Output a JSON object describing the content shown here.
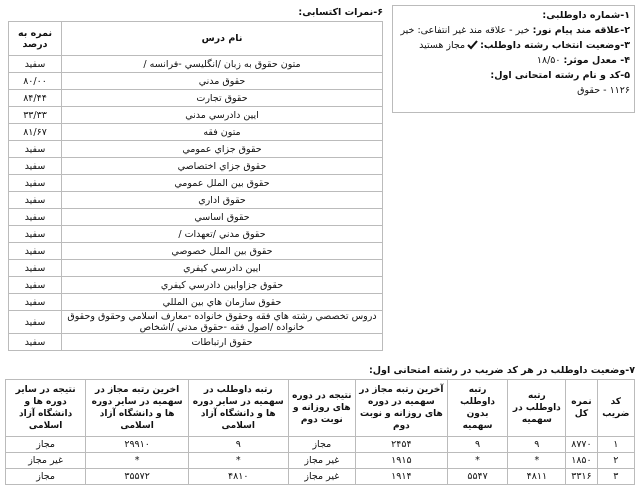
{
  "info": {
    "items": [
      {
        "label": "۱-شماره داوطلبی:"
      },
      {
        "label": "۲-علاقه مند پیام نور:",
        "value": "خیر - علاقه مند غیر انتفاعی: خیر"
      },
      {
        "label": "۳-وضعیت انتخاب رشته داوطلب:",
        "value": "مجاز هستید"
      },
      {
        "label": "۴- معدل موثر:",
        "value": "۱۸/۵۰"
      },
      {
        "label": "۵-کد و نام رشته امتحانی اول:",
        "value": "۱۱۲۶ - حقوق"
      }
    ]
  },
  "grades": {
    "title": "۶-نمرات اکتسابی:",
    "headers": [
      "نام درس",
      "نمره به درصد"
    ],
    "rows": [
      [
        "متون حقوق به زبان /انگليسي -فرانسه /",
        "سفيد"
      ],
      [
        "حقوق مدني",
        "۸۰/۰۰"
      ],
      [
        "حقوق تجارت",
        "۸۴/۴۴"
      ],
      [
        "ايين دادرسي مدني",
        "۳۳/۳۳"
      ],
      [
        "متون فقه",
        "۸۱/۶۷"
      ],
      [
        "حقوق جزاي عمومي",
        "سفيد"
      ],
      [
        "حقوق جزاي اختصاصي",
        "سفيد"
      ],
      [
        "حقوق بين الملل عمومي",
        "سفيد"
      ],
      [
        "حقوق اداري",
        "سفيد"
      ],
      [
        "حقوق اساسي",
        "سفيد"
      ],
      [
        "حقوق مدني /تعهدات /",
        "سفيد"
      ],
      [
        "حقوق بين الملل خصوصي",
        "سفيد"
      ],
      [
        "ايين دادرسي كيفري",
        "سفيد"
      ],
      [
        "حقوق جزاوايين دادرسي كيفري",
        "سفيد"
      ],
      [
        "حقوق سازمان هاي بين المللي",
        "سفيد"
      ],
      [
        "دروس تخصصي رشته هاي فقه وحقوق خانواده -معارف اسلامي وحقوق وحقوق خانواده /اصول فقه -حقوق مدني /اشخاص",
        "سفيد"
      ],
      [
        "حقوق ارتباطات",
        "سفيد"
      ]
    ]
  },
  "quota": {
    "title": "۷-وضعیت داوطلب در هر کد ضریب در رشته امتحانی اول:",
    "headers": [
      "کد ضریب",
      "نمره کل",
      "رتبه داوطلب در سهمیه",
      "رتبه داوطلب بدون سهمیه",
      "آخرین رتبه مجاز در سهمیه در دوره های روزانه و نوبت دوم",
      "نتیجه در دوره های روزانه و نوبت دوم",
      "رتبه داوطلب در سهمیه در سایر دوره ها و دانشگاه آزاد اسلامی",
      "اخرین رتبه مجاز در سهمیه در سایر دوره ها و دانشگاه آزاد اسلامی",
      "نتیجه در سایر دوره ها و دانشگاه آزاد اسلامی"
    ],
    "rows": [
      [
        "۱",
        "۸۷۷۰",
        "۹",
        "۹",
        "۲۴۵۴",
        "مجاز",
        "۹",
        "۲۹۹۱۰",
        "مجاز"
      ],
      [
        "۲",
        "۱۸۵۰",
        "*",
        "*",
        "۱۹۱۵",
        "غیر مجاز",
        "*",
        "*",
        "غیر مجاز"
      ],
      [
        "۳",
        "۳۳۱۶",
        "۴۸۱۱",
        "۵۵۴۷",
        "۱۹۱۴",
        "غیر مجاز",
        "۴۸۱۰",
        "۳۵۵۷۲",
        "مجاز"
      ]
    ]
  }
}
